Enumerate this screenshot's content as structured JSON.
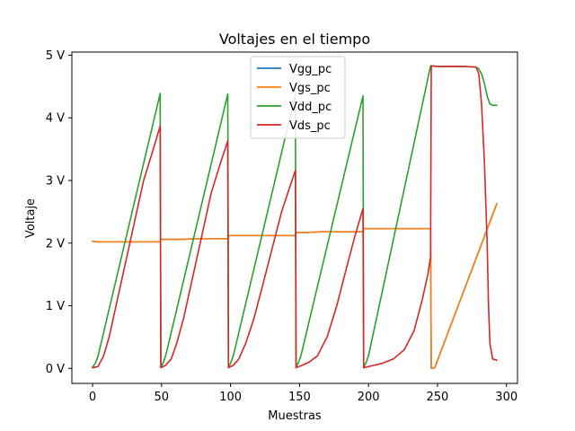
{
  "chart_data": {
    "type": "line",
    "title": "Voltajes en el tiempo",
    "xlabel": "Muestras",
    "ylabel": "Voltaje",
    "xlim": [
      -15,
      308
    ],
    "ylim": [
      -0.24,
      5.05
    ],
    "xticks": [
      0,
      50,
      100,
      150,
      200,
      250,
      300
    ],
    "yticks": [
      0,
      1,
      2,
      3,
      4,
      5
    ],
    "ytick_labels": [
      "0 V",
      "1 V",
      "2 V",
      "3 V",
      "4 V",
      "5 V"
    ],
    "grid": false,
    "legend_position": "upper-center",
    "series": [
      {
        "name": "Vgg_pc",
        "color": "#1f77b4",
        "x": [
          0,
          4,
          10,
          20,
          30,
          40,
          49,
          49.5,
          55,
          65,
          75,
          85,
          98,
          98.5,
          105,
          115,
          125,
          135,
          147,
          147.5,
          155,
          165,
          175,
          185,
          196,
          196.5,
          205,
          215,
          225,
          235,
          245,
          245.5,
          248,
          293
        ],
        "y": [
          2.03,
          2.02,
          2.02,
          2.02,
          2.02,
          2.02,
          2.02,
          2.06,
          2.06,
          2.06,
          2.07,
          2.07,
          2.07,
          2.12,
          2.12,
          2.12,
          2.12,
          2.12,
          2.12,
          2.17,
          2.17,
          2.18,
          2.18,
          2.18,
          2.18,
          2.23,
          2.23,
          2.23,
          2.23,
          2.23,
          2.23,
          0.0,
          0.01,
          2.63
        ]
      },
      {
        "name": "Vgs_pc",
        "color": "#ff7f0e",
        "x": [
          0,
          4,
          10,
          20,
          30,
          40,
          49,
          49.5,
          55,
          65,
          75,
          85,
          98,
          98.5,
          105,
          115,
          125,
          135,
          147,
          147.5,
          155,
          165,
          175,
          185,
          196,
          196.5,
          205,
          215,
          225,
          235,
          245,
          245.5,
          248,
          293
        ],
        "y": [
          2.03,
          2.02,
          2.02,
          2.02,
          2.02,
          2.02,
          2.02,
          2.06,
          2.06,
          2.06,
          2.07,
          2.07,
          2.07,
          2.12,
          2.12,
          2.12,
          2.12,
          2.12,
          2.12,
          2.17,
          2.17,
          2.18,
          2.18,
          2.18,
          2.18,
          2.23,
          2.23,
          2.23,
          2.23,
          2.23,
          2.23,
          0.0,
          0.01,
          2.63
        ]
      },
      {
        "name": "Vdd_pc",
        "color": "#2ca02c",
        "x": [
          0,
          2,
          4,
          49,
          49.5,
          51,
          53,
          98,
          98.5,
          100,
          102,
          147,
          147.5,
          149,
          151,
          196,
          196.5,
          198,
          200,
          245,
          246,
          250,
          260,
          270,
          278,
          280,
          282,
          284,
          286,
          288,
          290,
          293
        ],
        "y": [
          0.02,
          0.08,
          0.2,
          4.39,
          0.02,
          0.08,
          0.2,
          4.38,
          0.02,
          0.08,
          0.2,
          4.37,
          0.02,
          0.08,
          0.2,
          4.35,
          0.02,
          0.08,
          0.2,
          4.83,
          4.83,
          4.82,
          4.82,
          4.82,
          4.81,
          4.78,
          4.7,
          4.55,
          4.35,
          4.22,
          4.2,
          4.2
        ]
      },
      {
        "name": "Vds_pc",
        "color": "#d62728",
        "x": [
          0,
          4,
          8,
          12,
          17,
          23,
          30,
          37,
          44,
          49,
          49.5,
          53,
          57,
          61,
          66,
          72,
          79,
          86,
          93,
          98,
          98.5,
          102,
          106,
          111,
          117,
          123,
          130,
          137,
          143,
          147,
          147.5,
          152,
          157,
          163,
          170,
          177,
          184,
          190,
          196,
          196.5,
          202,
          210,
          218,
          226,
          233,
          239,
          243,
          245,
          245.5,
          250,
          260,
          270,
          278,
          280,
          282,
          284,
          286,
          287,
          288,
          290,
          293
        ],
        "y": [
          0.01,
          0.03,
          0.2,
          0.5,
          1.0,
          1.6,
          2.3,
          3.0,
          3.5,
          3.87,
          0.01,
          0.05,
          0.15,
          0.4,
          0.8,
          1.4,
          2.1,
          2.8,
          3.3,
          3.63,
          0.01,
          0.05,
          0.15,
          0.4,
          0.8,
          1.3,
          1.9,
          2.5,
          2.9,
          3.16,
          0.01,
          0.05,
          0.1,
          0.2,
          0.5,
          1.0,
          1.6,
          2.1,
          2.55,
          0.01,
          0.04,
          0.08,
          0.15,
          0.3,
          0.6,
          1.1,
          1.5,
          1.78,
          4.83,
          4.82,
          4.82,
          4.82,
          4.81,
          4.7,
          4.2,
          3.3,
          2.0,
          1.0,
          0.4,
          0.15,
          0.13
        ]
      }
    ]
  }
}
